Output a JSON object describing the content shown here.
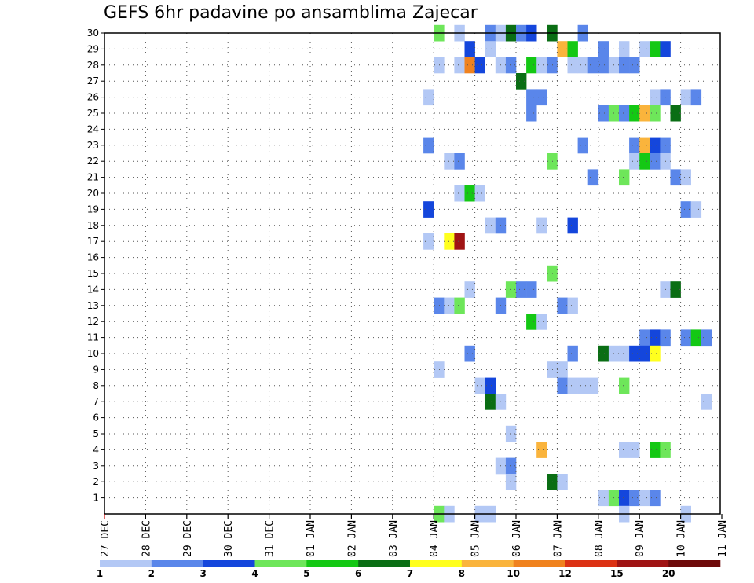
{
  "chart_data": {
    "type": "heatmap",
    "title": "GEFS 6hr padavine po ansamblima Zajecar",
    "x_tick_labels": [
      "27 DEC",
      "28 DEC",
      "29 DEC",
      "30 DEC",
      "31 DEC",
      "01 JAN",
      "02 JAN",
      "03 JAN",
      "04 JAN",
      "05 JAN",
      "06 JAN",
      "07 JAN",
      "08 JAN",
      "09 JAN",
      "10 JAN",
      "11 JAN"
    ],
    "y_tick_labels": [
      "1",
      "2",
      "3",
      "4",
      "5",
      "6",
      "7",
      "8",
      "9",
      "10",
      "11",
      "12",
      "13",
      "14",
      "15",
      "16",
      "17",
      "18",
      "19",
      "20",
      "21",
      "22",
      "23",
      "24",
      "25",
      "26",
      "27",
      "28",
      "29",
      "30"
    ],
    "x_unit": "6hr steps (4 per day)",
    "y_range": [
      0,
      30
    ],
    "grid": true,
    "colorbar": {
      "labels": [
        "1",
        "2",
        "3",
        "4",
        "5",
        "6",
        "7",
        "8",
        "10",
        "12",
        "15",
        "20"
      ],
      "colors": [
        "#b3c8f5",
        "#5a86ea",
        "#1446dc",
        "#6ee65a",
        "#14c814",
        "#0a6e14",
        "#ffff1e",
        "#fab43c",
        "#f0821e",
        "#dc3214",
        "#a01414",
        "#6e0a0a"
      ]
    },
    "cells": [
      {
        "m": 30,
        "s": 32,
        "c": "#6ee65a"
      },
      {
        "m": 30,
        "s": 34,
        "c": "#b3c8f5"
      },
      {
        "m": 30,
        "s": 37,
        "c": "#5a86ea"
      },
      {
        "m": 30,
        "s": 38,
        "c": "#b3c8f5"
      },
      {
        "m": 30,
        "s": 39,
        "c": "#0a6e14"
      },
      {
        "m": 30,
        "s": 40,
        "c": "#5a86ea"
      },
      {
        "m": 30,
        "s": 41,
        "c": "#1446dc"
      },
      {
        "m": 30,
        "s": 43,
        "c": "#0a6e14"
      },
      {
        "m": 30,
        "s": 46,
        "c": "#5a86ea"
      },
      {
        "m": 29,
        "s": 35,
        "c": "#1446dc"
      },
      {
        "m": 29,
        "s": 37,
        "c": "#b3c8f5"
      },
      {
        "m": 29,
        "s": 44,
        "c": "#fab43c"
      },
      {
        "m": 29,
        "s": 45,
        "c": "#14c814"
      },
      {
        "m": 29,
        "s": 48,
        "c": "#5a86ea"
      },
      {
        "m": 29,
        "s": 50,
        "c": "#b3c8f5"
      },
      {
        "m": 29,
        "s": 52,
        "c": "#b3c8f5"
      },
      {
        "m": 29,
        "s": 53,
        "c": "#14c814"
      },
      {
        "m": 29,
        "s": 54,
        "c": "#1446dc"
      },
      {
        "m": 28,
        "s": 32,
        "c": "#b3c8f5"
      },
      {
        "m": 28,
        "s": 34,
        "c": "#b3c8f5"
      },
      {
        "m": 28,
        "s": 35,
        "c": "#f0821e"
      },
      {
        "m": 28,
        "s": 36,
        "c": "#1446dc"
      },
      {
        "m": 28,
        "s": 38,
        "c": "#b3c8f5"
      },
      {
        "m": 28,
        "s": 39,
        "c": "#5a86ea"
      },
      {
        "m": 28,
        "s": 41,
        "c": "#14c814"
      },
      {
        "m": 28,
        "s": 42,
        "c": "#b3c8f5"
      },
      {
        "m": 28,
        "s": 43,
        "c": "#5a86ea"
      },
      {
        "m": 28,
        "s": 45,
        "c": "#b3c8f5"
      },
      {
        "m": 28,
        "s": 46,
        "c": "#b3c8f5"
      },
      {
        "m": 28,
        "s": 47,
        "c": "#5a86ea"
      },
      {
        "m": 28,
        "s": 48,
        "c": "#5a86ea"
      },
      {
        "m": 28,
        "s": 49,
        "c": "#b3c8f5"
      },
      {
        "m": 28,
        "s": 50,
        "c": "#5a86ea"
      },
      {
        "m": 28,
        "s": 51,
        "c": "#5a86ea"
      },
      {
        "m": 27,
        "s": 40,
        "c": "#0a6e14"
      },
      {
        "m": 26,
        "s": 31,
        "c": "#b3c8f5"
      },
      {
        "m": 26,
        "s": 41,
        "c": "#5a86ea"
      },
      {
        "m": 26,
        "s": 42,
        "c": "#5a86ea"
      },
      {
        "m": 26,
        "s": 53,
        "c": "#b3c8f5"
      },
      {
        "m": 26,
        "s": 54,
        "c": "#5a86ea"
      },
      {
        "m": 26,
        "s": 56,
        "c": "#b3c8f5"
      },
      {
        "m": 26,
        "s": 57,
        "c": "#5a86ea"
      },
      {
        "m": 25,
        "s": 41,
        "c": "#5a86ea"
      },
      {
        "m": 25,
        "s": 48,
        "c": "#5a86ea"
      },
      {
        "m": 25,
        "s": 49,
        "c": "#6ee65a"
      },
      {
        "m": 25,
        "s": 50,
        "c": "#5a86ea"
      },
      {
        "m": 25,
        "s": 51,
        "c": "#14c814"
      },
      {
        "m": 25,
        "s": 52,
        "c": "#fab43c"
      },
      {
        "m": 25,
        "s": 53,
        "c": "#6ee65a"
      },
      {
        "m": 25,
        "s": 55,
        "c": "#0a6e14"
      },
      {
        "m": 23,
        "s": 31,
        "c": "#5a86ea"
      },
      {
        "m": 23,
        "s": 46,
        "c": "#5a86ea"
      },
      {
        "m": 23,
        "s": 51,
        "c": "#5a86ea"
      },
      {
        "m": 23,
        "s": 52,
        "c": "#fab43c"
      },
      {
        "m": 23,
        "s": 53,
        "c": "#1446dc"
      },
      {
        "m": 23,
        "s": 54,
        "c": "#5a86ea"
      },
      {
        "m": 22,
        "s": 33,
        "c": "#b3c8f5"
      },
      {
        "m": 22,
        "s": 34,
        "c": "#5a86ea"
      },
      {
        "m": 22,
        "s": 43,
        "c": "#6ee65a"
      },
      {
        "m": 22,
        "s": 51,
        "c": "#b3c8f5"
      },
      {
        "m": 22,
        "s": 52,
        "c": "#14c814"
      },
      {
        "m": 22,
        "s": 53,
        "c": "#5a86ea"
      },
      {
        "m": 22,
        "s": 54,
        "c": "#b3c8f5"
      },
      {
        "m": 21,
        "s": 47,
        "c": "#5a86ea"
      },
      {
        "m": 21,
        "s": 50,
        "c": "#6ee65a"
      },
      {
        "m": 21,
        "s": 55,
        "c": "#5a86ea"
      },
      {
        "m": 21,
        "s": 56,
        "c": "#b3c8f5"
      },
      {
        "m": 20,
        "s": 34,
        "c": "#b3c8f5"
      },
      {
        "m": 20,
        "s": 35,
        "c": "#14c814"
      },
      {
        "m": 20,
        "s": 36,
        "c": "#b3c8f5"
      },
      {
        "m": 19,
        "s": 31,
        "c": "#1446dc"
      },
      {
        "m": 19,
        "s": 56,
        "c": "#5a86ea"
      },
      {
        "m": 19,
        "s": 57,
        "c": "#b3c8f5"
      },
      {
        "m": 18,
        "s": 37,
        "c": "#b3c8f5"
      },
      {
        "m": 18,
        "s": 38,
        "c": "#5a86ea"
      },
      {
        "m": 18,
        "s": 42,
        "c": "#b3c8f5"
      },
      {
        "m": 18,
        "s": 45,
        "c": "#1446dc"
      },
      {
        "m": 17,
        "s": 31,
        "c": "#b3c8f5"
      },
      {
        "m": 17,
        "s": 33,
        "c": "#ffff1e"
      },
      {
        "m": 17,
        "s": 34,
        "c": "#a01414"
      },
      {
        "m": 15,
        "s": 43,
        "c": "#6ee65a"
      },
      {
        "m": 14,
        "s": 35,
        "c": "#b3c8f5"
      },
      {
        "m": 14,
        "s": 39,
        "c": "#6ee65a"
      },
      {
        "m": 14,
        "s": 40,
        "c": "#5a86ea"
      },
      {
        "m": 14,
        "s": 41,
        "c": "#5a86ea"
      },
      {
        "m": 14,
        "s": 54,
        "c": "#b3c8f5"
      },
      {
        "m": 14,
        "s": 55,
        "c": "#0a6e14"
      },
      {
        "m": 13,
        "s": 32,
        "c": "#5a86ea"
      },
      {
        "m": 13,
        "s": 33,
        "c": "#b3c8f5"
      },
      {
        "m": 13,
        "s": 34,
        "c": "#6ee65a"
      },
      {
        "m": 13,
        "s": 38,
        "c": "#5a86ea"
      },
      {
        "m": 13,
        "s": 44,
        "c": "#5a86ea"
      },
      {
        "m": 13,
        "s": 45,
        "c": "#b3c8f5"
      },
      {
        "m": 12,
        "s": 41,
        "c": "#14c814"
      },
      {
        "m": 12,
        "s": 42,
        "c": "#b3c8f5"
      },
      {
        "m": 11,
        "s": 52,
        "c": "#5a86ea"
      },
      {
        "m": 11,
        "s": 53,
        "c": "#1446dc"
      },
      {
        "m": 11,
        "s": 54,
        "c": "#5a86ea"
      },
      {
        "m": 11,
        "s": 56,
        "c": "#5a86ea"
      },
      {
        "m": 11,
        "s": 57,
        "c": "#14c814"
      },
      {
        "m": 11,
        "s": 58,
        "c": "#5a86ea"
      },
      {
        "m": 10,
        "s": 35,
        "c": "#5a86ea"
      },
      {
        "m": 10,
        "s": 45,
        "c": "#5a86ea"
      },
      {
        "m": 10,
        "s": 48,
        "c": "#0a6e14"
      },
      {
        "m": 10,
        "s": 49,
        "c": "#b3c8f5"
      },
      {
        "m": 10,
        "s": 50,
        "c": "#b3c8f5"
      },
      {
        "m": 10,
        "s": 51,
        "c": "#1446dc"
      },
      {
        "m": 10,
        "s": 52,
        "c": "#1446dc"
      },
      {
        "m": 10,
        "s": 53,
        "c": "#ffff1e"
      },
      {
        "m": 9,
        "s": 32,
        "c": "#b3c8f5"
      },
      {
        "m": 9,
        "s": 43,
        "c": "#b3c8f5"
      },
      {
        "m": 9,
        "s": 44,
        "c": "#b3c8f5"
      },
      {
        "m": 8,
        "s": 36,
        "c": "#b3c8f5"
      },
      {
        "m": 8,
        "s": 37,
        "c": "#1446dc"
      },
      {
        "m": 8,
        "s": 44,
        "c": "#5a86ea"
      },
      {
        "m": 8,
        "s": 45,
        "c": "#b3c8f5"
      },
      {
        "m": 8,
        "s": 46,
        "c": "#b3c8f5"
      },
      {
        "m": 8,
        "s": 47,
        "c": "#b3c8f5"
      },
      {
        "m": 8,
        "s": 50,
        "c": "#6ee65a"
      },
      {
        "m": 7,
        "s": 37,
        "c": "#0a6e14"
      },
      {
        "m": 7,
        "s": 38,
        "c": "#b3c8f5"
      },
      {
        "m": 7,
        "s": 58,
        "c": "#b3c8f5"
      },
      {
        "m": 5,
        "s": 39,
        "c": "#b3c8f5"
      },
      {
        "m": 4,
        "s": 42,
        "c": "#fab43c"
      },
      {
        "m": 4,
        "s": 50,
        "c": "#b3c8f5"
      },
      {
        "m": 4,
        "s": 51,
        "c": "#b3c8f5"
      },
      {
        "m": 4,
        "s": 53,
        "c": "#14c814"
      },
      {
        "m": 4,
        "s": 54,
        "c": "#6ee65a"
      },
      {
        "m": 3,
        "s": 38,
        "c": "#b3c8f5"
      },
      {
        "m": 3,
        "s": 39,
        "c": "#5a86ea"
      },
      {
        "m": 2,
        "s": 39,
        "c": "#b3c8f5"
      },
      {
        "m": 2,
        "s": 43,
        "c": "#0a6e14"
      },
      {
        "m": 2,
        "s": 44,
        "c": "#b3c8f5"
      },
      {
        "m": 1,
        "s": 48,
        "c": "#b3c8f5"
      },
      {
        "m": 1,
        "s": 49,
        "c": "#6ee65a"
      },
      {
        "m": 1,
        "s": 50,
        "c": "#1446dc"
      },
      {
        "m": 1,
        "s": 51,
        "c": "#5a86ea"
      },
      {
        "m": 1,
        "s": 52,
        "c": "#b3c8f5"
      },
      {
        "m": 1,
        "s": 53,
        "c": "#5a86ea"
      },
      {
        "m": 0,
        "s": 32,
        "c": "#6ee65a"
      },
      {
        "m": 0,
        "s": 33,
        "c": "#b3c8f5"
      },
      {
        "m": 0,
        "s": 36,
        "c": "#b3c8f5"
      },
      {
        "m": 0,
        "s": 37,
        "c": "#b3c8f5"
      },
      {
        "m": 0,
        "s": 50,
        "c": "#b3c8f5"
      },
      {
        "m": 0,
        "s": 56,
        "c": "#b3c8f5"
      }
    ]
  }
}
